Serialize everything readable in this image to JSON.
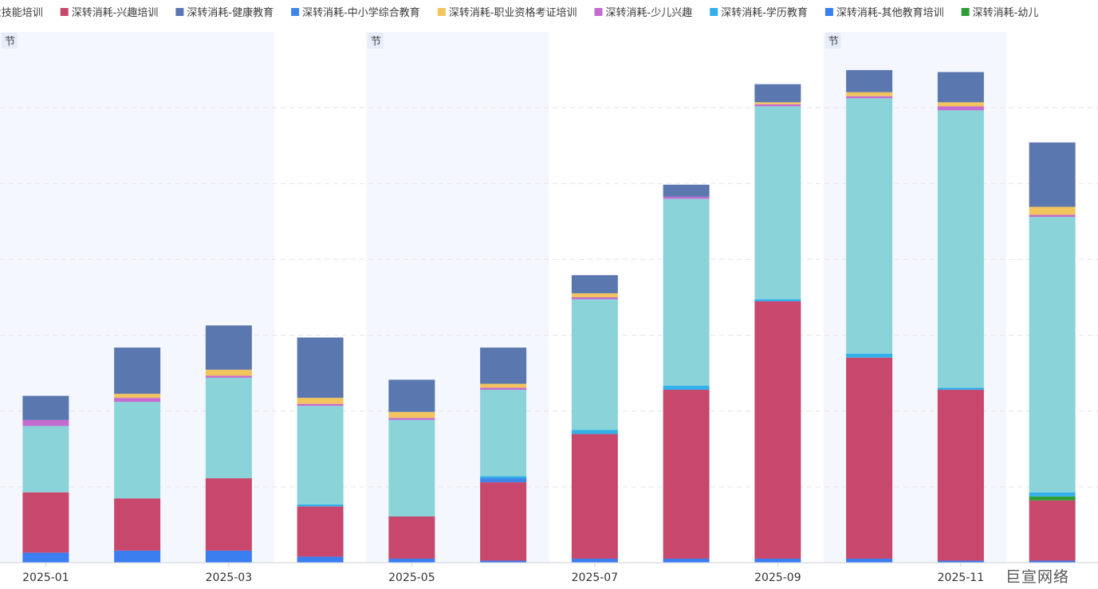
{
  "chart_data": {
    "type": "bar",
    "stacked": true,
    "categories": [
      "2025-01",
      "2025-02",
      "2025-03",
      "2025-04",
      "2025-05",
      "2025-06",
      "2025-07",
      "2025-08",
      "2025-09",
      "2025-10",
      "2025-11",
      "2025-12"
    ],
    "x_tick_labels": [
      "2025-01",
      "",
      "2025-03",
      "",
      "2025-05",
      "",
      "2025-07",
      "",
      "2025-09",
      "",
      "2025-11",
      ""
    ],
    "legend_position": "top",
    "grid": true,
    "ylim": [
      0,
      132
    ],
    "series": [
      {
        "name": "深转消耗-其他教育培训",
        "color": "#3b7ef0",
        "values": [
          2.5,
          3.0,
          3.0,
          1.5,
          1.0,
          0.5,
          1.0,
          1.0,
          1.0,
          1.0,
          0.5,
          0.5
        ]
      },
      {
        "name": "深转消耗-兴趣培训",
        "color": "#c8476d",
        "values": [
          15.0,
          13.0,
          18.0,
          12.5,
          10.5,
          19.5,
          31.0,
          42.0,
          64.0,
          50.0,
          42.5,
          15.0
        ]
      },
      {
        "name": "深转消耗-中小学综合教育",
        "color": "#3d86e8",
        "values": [
          0,
          0,
          0,
          0,
          0,
          1.0,
          0,
          0,
          0,
          0,
          0,
          0
        ]
      },
      {
        "name": "深转消耗-幼儿",
        "color": "#2e9c39",
        "values": [
          0,
          0,
          0,
          0,
          0,
          0,
          0,
          0,
          0,
          0,
          0,
          1.0
        ]
      },
      {
        "name": "深转消耗-学历教育",
        "color": "#33b0ec",
        "values": [
          0,
          0,
          0,
          0.5,
          0,
          0.5,
          1.0,
          1.0,
          0.5,
          1.0,
          0.5,
          1.0
        ]
      },
      {
        "name": "深转消耗-职业技能培训",
        "color": "#8ad4d9",
        "values": [
          16.5,
          24.0,
          25.0,
          24.5,
          24.0,
          21.5,
          32.5,
          46.5,
          48.0,
          63.5,
          69.0,
          68.5
        ]
      },
      {
        "name": "深转消耗-少儿兴趣",
        "color": "#c46bd0",
        "values": [
          1.5,
          1.0,
          0.5,
          0.5,
          0.5,
          0.5,
          0.5,
          0.5,
          0.5,
          0.5,
          1.0,
          0.5
        ]
      },
      {
        "name": "深转消耗-职业资格考证培训",
        "color": "#f2c45e",
        "values": [
          0,
          1.0,
          1.5,
          1.5,
          1.5,
          1.0,
          1.0,
          0,
          0.5,
          1.0,
          1.0,
          2.0
        ]
      },
      {
        "name": "深转消耗-健康教育",
        "color": "#5b77b0",
        "values": [
          6.0,
          11.5,
          11.0,
          15.0,
          8.0,
          9.0,
          4.5,
          3.0,
          4.5,
          5.5,
          7.5,
          16.0
        ]
      }
    ],
    "legend_entries": [
      {
        "label": "深转消耗-职业技能培训",
        "color": "#8ad4d9"
      },
      {
        "label": "深转消耗-兴趣培训",
        "color": "#c8476d"
      },
      {
        "label": "深转消耗-健康教育",
        "color": "#5b77b0"
      },
      {
        "label": "深转消耗-中小学综合教育",
        "color": "#3d86e8"
      },
      {
        "label": "深转消耗-职业资格考证培训",
        "color": "#f2c45e"
      },
      {
        "label": "深转消耗-少儿兴趣",
        "color": "#c46bd0"
      },
      {
        "label": "深转消耗-学历教育",
        "color": "#33b0ec"
      },
      {
        "label": "深转消耗-其他教育培训",
        "color": "#3b7ef0"
      },
      {
        "label": "深转消耗-幼儿",
        "color": "#2e9c39"
      }
    ],
    "highlight_bands": [
      {
        "from": "2025-01",
        "to": "2025-03",
        "label": "节"
      },
      {
        "from": "2025-05",
        "to": "2025-06",
        "label": "节"
      },
      {
        "from": "2025-10",
        "to": "2025-11",
        "label": "节"
      }
    ]
  },
  "brand": "巨宣网络"
}
